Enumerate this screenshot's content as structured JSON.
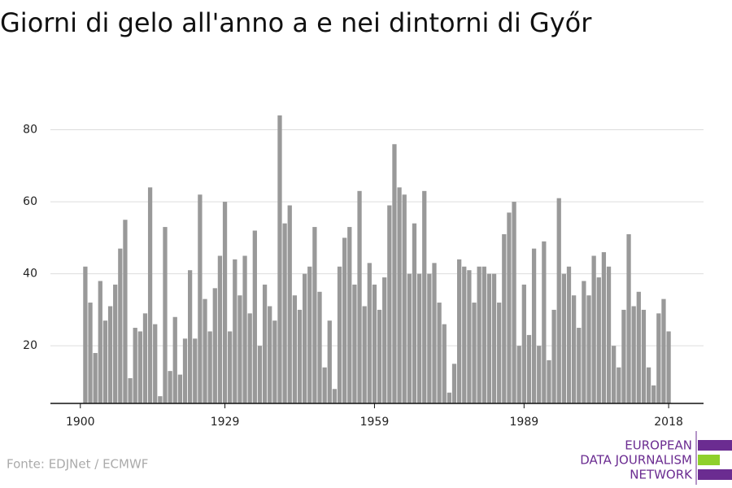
{
  "chart_data": {
    "type": "bar",
    "title": "Giorni di gelo all'anno a e nei dintorni di Győr",
    "source": "Fonte: EDJNet / ECMWF",
    "logo": [
      "EUROPEAN",
      "DATA JOURNALISM",
      "NETWORK"
    ],
    "color": "#999999",
    "x": [
      1901,
      1902,
      1903,
      1904,
      1905,
      1906,
      1907,
      1908,
      1909,
      1910,
      1911,
      1912,
      1913,
      1914,
      1915,
      1916,
      1917,
      1918,
      1919,
      1920,
      1921,
      1922,
      1923,
      1924,
      1925,
      1926,
      1927,
      1928,
      1929,
      1930,
      1931,
      1932,
      1933,
      1934,
      1935,
      1936,
      1937,
      1938,
      1939,
      1940,
      1941,
      1942,
      1943,
      1944,
      1945,
      1946,
      1947,
      1948,
      1949,
      1950,
      1951,
      1952,
      1953,
      1954,
      1955,
      1956,
      1957,
      1958,
      1959,
      1960,
      1961,
      1962,
      1963,
      1964,
      1965,
      1966,
      1967,
      1968,
      1969,
      1970,
      1971,
      1972,
      1973,
      1974,
      1975,
      1976,
      1977,
      1978,
      1979,
      1980,
      1981,
      1982,
      1983,
      1984,
      1985,
      1986,
      1987,
      1988,
      1989,
      1990,
      1991,
      1992,
      1993,
      1994,
      1995,
      1996,
      1997,
      1998,
      1999,
      2000,
      2001,
      2002,
      2003,
      2004,
      2005,
      2006,
      2007,
      2008,
      2009,
      2010,
      2011,
      2012,
      2013,
      2014,
      2015,
      2016,
      2017,
      2018
    ],
    "values": [
      42,
      32,
      18,
      38,
      27,
      31,
      37,
      47,
      55,
      11,
      25,
      24,
      29,
      64,
      26,
      6,
      53,
      13,
      28,
      12,
      22,
      41,
      22,
      62,
      33,
      24,
      36,
      45,
      60,
      24,
      44,
      34,
      45,
      29,
      52,
      20,
      37,
      31,
      27,
      84,
      54,
      59,
      34,
      30,
      40,
      42,
      53,
      35,
      14,
      27,
      8,
      42,
      50,
      53,
      37,
      63,
      31,
      43,
      37,
      30,
      39,
      59,
      76,
      64,
      62,
      40,
      54,
      40,
      63,
      40,
      43,
      32,
      26,
      7,
      15,
      44,
      42,
      41,
      32,
      42,
      42,
      40,
      40,
      32,
      51,
      57,
      60,
      20,
      37,
      23,
      47,
      20,
      49,
      16,
      30,
      61,
      40,
      42,
      34,
      25,
      38,
      34,
      45,
      39,
      46,
      42,
      20,
      14,
      30,
      51,
      31,
      35,
      30,
      14,
      9,
      29,
      33,
      24
    ],
    "xlim": [
      1894,
      2025
    ],
    "xticks": [
      1900,
      1929,
      1959,
      1989,
      2018
    ],
    "ylim": [
      4,
      86
    ],
    "yticks": [
      20,
      40,
      60,
      80
    ],
    "grid": true
  }
}
